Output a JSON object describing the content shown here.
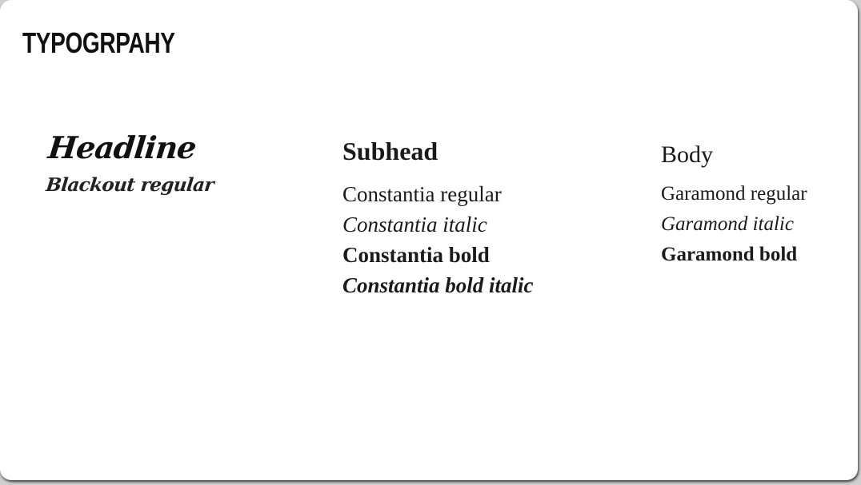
{
  "slide": {
    "title": "TYPOGRPAHY"
  },
  "headline": {
    "label": "Headline",
    "font": "Blackout regular"
  },
  "subhead": {
    "label": "Subhead",
    "styles": [
      "Constantia regular",
      "Constantia italic",
      "Constantia bold",
      "Constantia bold italic"
    ]
  },
  "body": {
    "label": "Body",
    "styles": [
      "Garamond regular",
      "Garamond italic",
      "Garamond bold"
    ]
  }
}
